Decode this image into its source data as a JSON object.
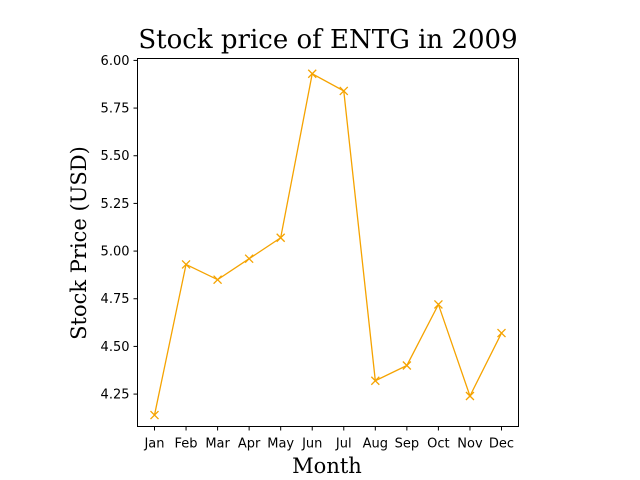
{
  "chart_data": {
    "type": "line",
    "title": "Stock price of ENTG in 2009",
    "xlabel": "Month",
    "ylabel": "Stock Price (USD)",
    "categories": [
      "Jan",
      "Feb",
      "Mar",
      "Apr",
      "May",
      "Jun",
      "Jul",
      "Aug",
      "Sep",
      "Oct",
      "Nov",
      "Dec"
    ],
    "values": [
      4.14,
      4.93,
      4.85,
      4.96,
      5.07,
      5.93,
      5.84,
      4.32,
      4.4,
      4.72,
      4.24,
      4.57
    ],
    "yticks": [
      "4.25",
      "4.50",
      "4.75",
      "5.00",
      "5.25",
      "5.50",
      "5.75",
      "6.00"
    ],
    "ylim": [
      4.08,
      6.01
    ],
    "grid": false,
    "marker": "x",
    "color": "#f5a300"
  }
}
